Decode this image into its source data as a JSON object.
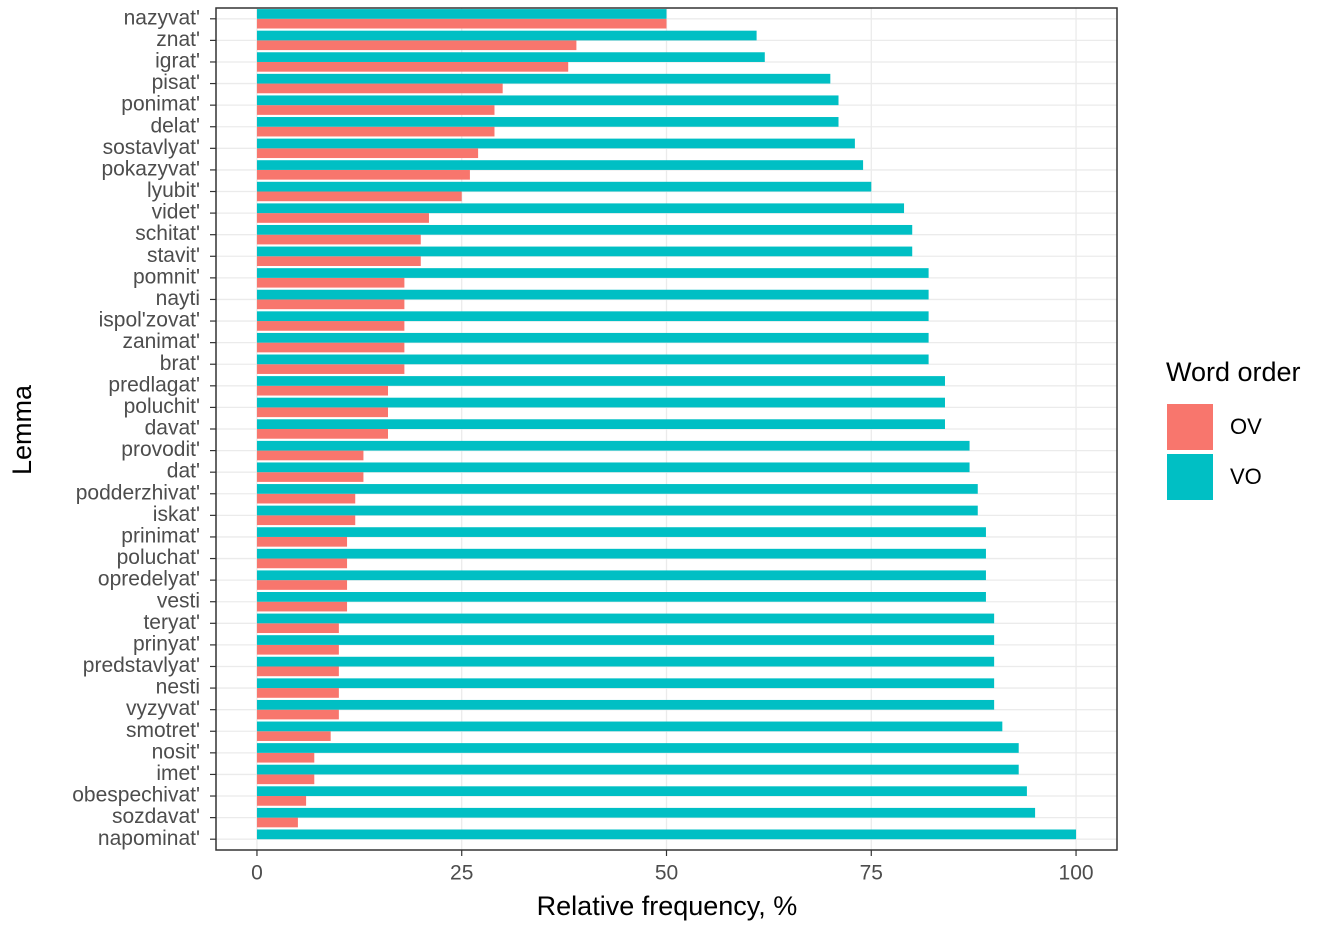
{
  "chart_data": {
    "type": "bar",
    "orientation": "horizontal",
    "position": "dodge",
    "x_label": "Relative frequency, %",
    "y_label": "Lemma",
    "legend_title": "Word order",
    "legend_position": "right",
    "grid": true,
    "categories": [
      "nazyvat'",
      "znat'",
      "igrat'",
      "pisat'",
      "ponimat'",
      "delat'",
      "sostavlyat'",
      "pokazyvat'",
      "lyubit'",
      "videt'",
      "schitat'",
      "stavit'",
      "pomnit'",
      "nayti",
      "ispol'zovat'",
      "zanimat'",
      "brat'",
      "predlagat'",
      "poluchit'",
      "davat'",
      "provodit'",
      "dat'",
      "podderzhivat'",
      "iskat'",
      "prinimat'",
      "poluchat'",
      "opredelyat'",
      "vesti",
      "teryat'",
      "prinyat'",
      "predstavlyat'",
      "nesti",
      "vyzyvat'",
      "smotret'",
      "nosit'",
      "imet'",
      "obespechivat'",
      "sozdavat'",
      "napominat'"
    ],
    "series": [
      {
        "name": "OV",
        "color": "#F8766D",
        "values": [
          50,
          39,
          38,
          30,
          29,
          29,
          27,
          26,
          25,
          21,
          20,
          20,
          18,
          18,
          18,
          18,
          18,
          16,
          16,
          16,
          13,
          13,
          12,
          12,
          11,
          11,
          11,
          11,
          10,
          10,
          10,
          10,
          10,
          9,
          7,
          7,
          6,
          5,
          0
        ]
      },
      {
        "name": "VO",
        "color": "#00BFC4",
        "values": [
          50,
          61,
          62,
          70,
          71,
          71,
          73,
          74,
          75,
          79,
          80,
          80,
          82,
          82,
          82,
          82,
          82,
          84,
          84,
          84,
          87,
          87,
          88,
          88,
          89,
          89,
          89,
          89,
          90,
          90,
          90,
          90,
          90,
          91,
          93,
          93,
          94,
          95,
          100
        ]
      }
    ],
    "xlim": [
      -5,
      105
    ],
    "xticks": [
      0,
      25,
      50,
      75,
      100
    ]
  }
}
